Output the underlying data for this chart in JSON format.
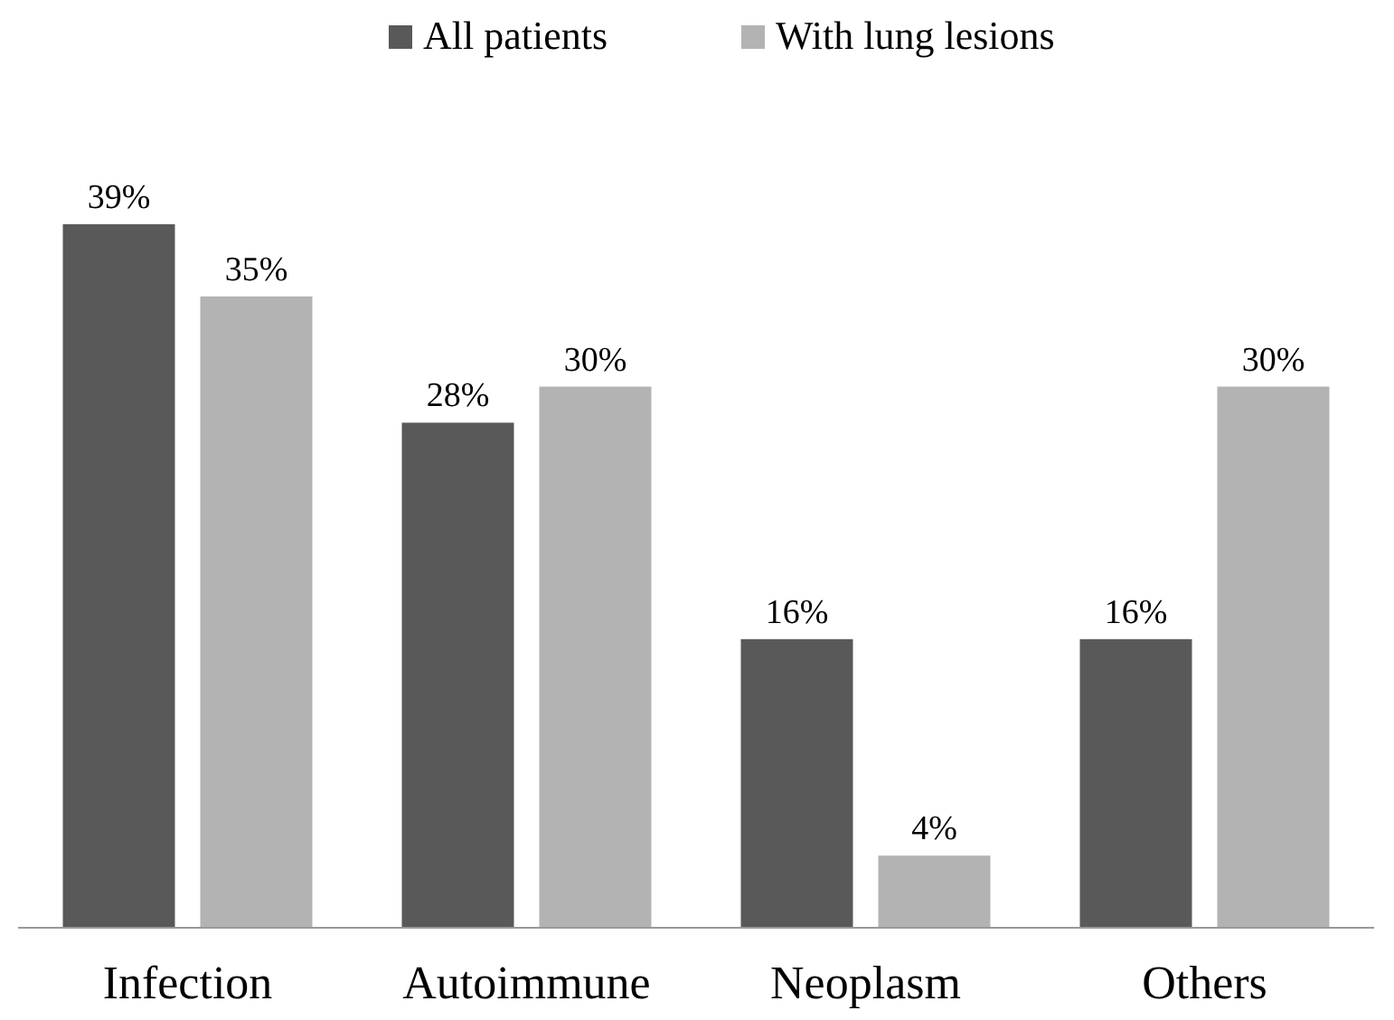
{
  "chart_data": {
    "type": "bar",
    "categories": [
      "Infection",
      "Autoimmune",
      "Neoplasm",
      "Others"
    ],
    "series": [
      {
        "name": "All patients",
        "color": "#595959",
        "values": [
          39,
          28,
          16,
          16
        ],
        "value_labels": [
          "39%",
          "28%",
          "16%",
          "16%"
        ]
      },
      {
        "name": "With lung lesions",
        "color": "#b3b3b3",
        "values": [
          35,
          30,
          4,
          30
        ],
        "value_labels": [
          "35%",
          "30%",
          "4%",
          "30%"
        ]
      }
    ],
    "legend": "top"
  }
}
